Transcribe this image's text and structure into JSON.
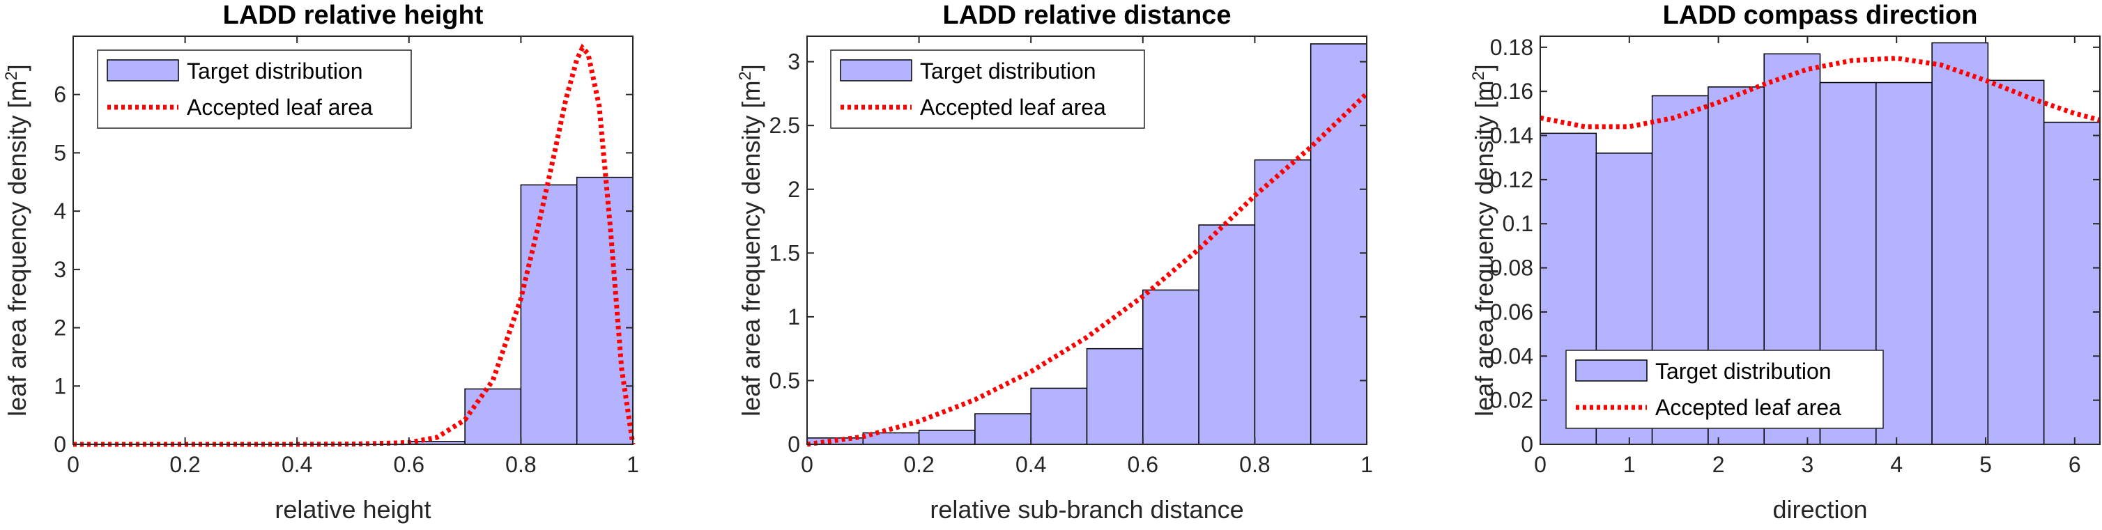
{
  "chart_data": [
    {
      "type": "bar",
      "title": "LADD relative height",
      "xlabel": "relative height",
      "ylabel": "leaf area frequency density [m",
      "ylabel_sup": "2",
      "ylabel_close": "]",
      "xlim": [
        0,
        1
      ],
      "ylim": [
        0,
        7
      ],
      "xticks": [
        0,
        0.2,
        0.4,
        0.6,
        0.8,
        1
      ],
      "xtick_labels": [
        "0",
        "0.2",
        "0.4",
        "0.6",
        "0.8",
        "1"
      ],
      "yticks": [
        0,
        1,
        2,
        3,
        4,
        5,
        6
      ],
      "ytick_labels": [
        "0",
        "1",
        "2",
        "3",
        "4",
        "5",
        "6"
      ],
      "bin_edges": [
        0,
        0.1,
        0.2,
        0.3,
        0.4,
        0.5,
        0.6,
        0.7,
        0.8,
        0.9,
        1.0
      ],
      "values": [
        0,
        0,
        0,
        0,
        0,
        0,
        0.05,
        0.95,
        4.45,
        4.58
      ],
      "series": [
        {
          "name": "Target distribution",
          "type": "histogram",
          "color": "#b3b3ff"
        },
        {
          "name": "Accepted leaf area",
          "type": "line",
          "style": "dotted",
          "color": "#ff0000",
          "x": [
            0,
            0.4,
            0.5,
            0.6,
            0.65,
            0.7,
            0.75,
            0.8,
            0.83,
            0.86,
            0.88,
            0.9,
            0.91,
            0.92,
            0.94,
            0.96,
            0.98,
            1.0
          ],
          "y": [
            0,
            0,
            0.005,
            0.03,
            0.12,
            0.42,
            1.1,
            2.5,
            3.7,
            5.0,
            5.9,
            6.6,
            6.8,
            6.7,
            5.8,
            3.7,
            1.3,
            0
          ]
        }
      ],
      "legend": {
        "position": "top-left",
        "entries": [
          "Target distribution",
          "Accepted leaf area"
        ]
      },
      "grid": false
    },
    {
      "type": "bar",
      "title": "LADD relative distance",
      "xlabel": "relative sub-branch distance",
      "ylabel": "leaf area frequency density [m",
      "ylabel_sup": "2",
      "ylabel_close": "]",
      "xlim": [
        0,
        1
      ],
      "ylim": [
        0,
        3.2
      ],
      "xticks": [
        0,
        0.2,
        0.4,
        0.6,
        0.8,
        1
      ],
      "xtick_labels": [
        "0",
        "0.2",
        "0.4",
        "0.6",
        "0.8",
        "1"
      ],
      "yticks": [
        0,
        0.5,
        1,
        1.5,
        2,
        2.5,
        3
      ],
      "ytick_labels": [
        "0",
        "0.5",
        "1",
        "1.5",
        "2",
        "2.5",
        "3"
      ],
      "bin_edges": [
        0,
        0.1,
        0.2,
        0.3,
        0.4,
        0.5,
        0.6,
        0.7,
        0.8,
        0.9,
        1.0
      ],
      "values": [
        0.05,
        0.09,
        0.11,
        0.24,
        0.44,
        0.75,
        1.21,
        1.72,
        2.23,
        3.14
      ],
      "series": [
        {
          "name": "Target distribution",
          "type": "histogram",
          "color": "#b3b3ff"
        },
        {
          "name": "Accepted leaf area",
          "type": "line",
          "style": "dotted",
          "color": "#ff0000",
          "x": [
            0,
            0.1,
            0.2,
            0.3,
            0.4,
            0.5,
            0.6,
            0.7,
            0.8,
            0.9,
            1.0
          ],
          "y": [
            0,
            0.06,
            0.18,
            0.35,
            0.57,
            0.84,
            1.16,
            1.53,
            1.95,
            2.33,
            2.75
          ]
        }
      ],
      "legend": {
        "position": "top-left",
        "entries": [
          "Target distribution",
          "Accepted leaf area"
        ]
      },
      "grid": false
    },
    {
      "type": "bar",
      "title": "LADD compass direction",
      "xlabel": "direction",
      "ylabel": "leaf area frequency density [m",
      "ylabel_sup": "2",
      "ylabel_close": "]",
      "xlim": [
        0,
        6.2832
      ],
      "ylim": [
        0,
        0.185
      ],
      "xticks": [
        0,
        1,
        2,
        3,
        4,
        5,
        6
      ],
      "xtick_labels": [
        "0",
        "1",
        "2",
        "3",
        "4",
        "5",
        "6"
      ],
      "yticks": [
        0,
        0.02,
        0.04,
        0.06,
        0.08,
        0.1,
        0.12,
        0.14,
        0.16,
        0.18
      ],
      "ytick_labels": [
        "0",
        "0.02",
        "0.04",
        "0.06",
        "0.08",
        "0.1",
        "0.12",
        "0.14",
        "0.16",
        "0.18"
      ],
      "bin_edges": [
        0,
        0.6283,
        1.2566,
        1.885,
        2.5133,
        3.1416,
        3.7699,
        4.3982,
        5.0265,
        5.6549,
        6.2832
      ],
      "values": [
        0.141,
        0.132,
        0.158,
        0.162,
        0.177,
        0.164,
        0.164,
        0.182,
        0.165,
        0.146
      ],
      "series": [
        {
          "name": "Target distribution",
          "type": "histogram",
          "color": "#b3b3ff"
        },
        {
          "name": "Accepted leaf area",
          "type": "line",
          "style": "dotted",
          "color": "#ff0000",
          "x": [
            0,
            0.5,
            1.0,
            1.5,
            2.0,
            2.5,
            3.0,
            3.5,
            4.0,
            4.5,
            5.0,
            5.5,
            6.0,
            6.2832
          ],
          "y": [
            0.148,
            0.144,
            0.144,
            0.148,
            0.155,
            0.163,
            0.17,
            0.174,
            0.175,
            0.172,
            0.165,
            0.157,
            0.15,
            0.147
          ]
        }
      ],
      "legend": {
        "position": "bottom-left",
        "entries": [
          "Target distribution",
          "Accepted leaf area"
        ]
      },
      "grid": false
    }
  ]
}
